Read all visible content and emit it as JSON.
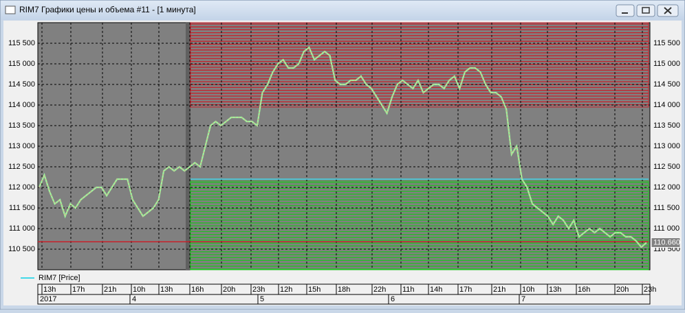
{
  "window": {
    "title": "RIM7 Графики цены и объема #11 - [1 минута]"
  },
  "chart_data": {
    "type": "line",
    "legend": "RIM7 [Price]",
    "series": [
      {
        "name": "RIM7 [Price]",
        "color": "#9df59d",
        "values": [
          112000,
          112300,
          111900,
          111600,
          111700,
          111300,
          111600,
          111500,
          111700,
          111800,
          111900,
          112000,
          112000,
          111800,
          112000,
          112200,
          112200,
          112200,
          111700,
          111500,
          111300,
          111400,
          111500,
          111700,
          112400,
          112500,
          112400,
          112500,
          112400,
          112500,
          112600,
          112500,
          113000,
          113500,
          113600,
          113500,
          113600,
          113700,
          113700,
          113700,
          113600,
          113600,
          113500,
          114300,
          114500,
          114800,
          115000,
          115100,
          114900,
          114900,
          115000,
          115300,
          115400,
          115100,
          115200,
          115300,
          115200,
          114600,
          114500,
          114500,
          114600,
          114600,
          114700,
          114500,
          114400,
          114200,
          114000,
          113800,
          114200,
          114500,
          114600,
          114500,
          114400,
          114600,
          114300,
          114400,
          114500,
          114500,
          114400,
          114600,
          114700,
          114400,
          114800,
          114900,
          114900,
          114800,
          114500,
          114300,
          114300,
          114200,
          113900,
          112800,
          113000,
          112200,
          112000,
          111600,
          111500,
          111400,
          111300,
          111100,
          111300,
          111200,
          111000,
          111200,
          110800,
          110900,
          111000,
          110900,
          111000,
          110900,
          110800,
          110900,
          110900,
          110800,
          110800,
          110700,
          110550,
          110660
        ]
      }
    ],
    "ylim": [
      110000,
      116000
    ],
    "yticks": [
      {
        "value": 110500,
        "label": "110 500"
      },
      {
        "value": 111000,
        "label": "111 000"
      },
      {
        "value": 111500,
        "label": "111 500"
      },
      {
        "value": 112000,
        "label": "112 000"
      },
      {
        "value": 112500,
        "label": "112 500"
      },
      {
        "value": 113000,
        "label": "113 000"
      },
      {
        "value": 113500,
        "label": "113 500"
      },
      {
        "value": 114000,
        "label": "114 000"
      },
      {
        "value": 114500,
        "label": "114 500"
      },
      {
        "value": 115000,
        "label": "115 000"
      },
      {
        "value": 115500,
        "label": "115 500"
      }
    ],
    "last_price": {
      "value": 110660,
      "label": "110.660"
    },
    "zones": [
      {
        "color": "#c8202a",
        "from": 113950,
        "to": 116000
      },
      {
        "color": "#22c022",
        "from": 110000,
        "to": 112150
      }
    ],
    "levels": [
      {
        "color": "#40d8e8",
        "value": 112200
      },
      {
        "color": "#c8202a",
        "value": 110680
      }
    ],
    "time_labels": [
      "13h",
      "17h",
      "21h",
      "10h",
      "13h",
      "16h",
      "20h",
      "23h",
      "12h",
      "15h",
      "18h",
      "22h",
      "11h",
      "14h",
      "17h",
      "21h",
      "10h",
      "13h",
      "16h",
      "20h",
      "23h"
    ],
    "date_labels": [
      "2017",
      "4",
      "5",
      "6",
      "7"
    ],
    "grid": true
  }
}
